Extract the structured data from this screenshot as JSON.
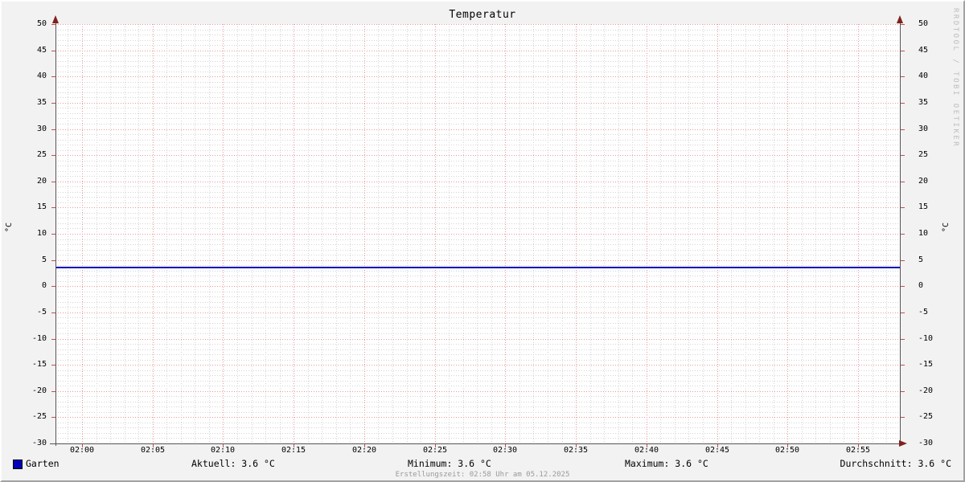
{
  "title": "Temperatur",
  "y_axis_unit": "°C",
  "watermark": "RRDTOOL / TOBI OETIKER",
  "legend": {
    "series_label": "Garten",
    "stats": [
      "Aktuell: 3.6 °C",
      "Minimum: 3.6 °C",
      "Maximum: 3.6 °C",
      "Durchschnitt: 3.6 °C"
    ]
  },
  "footer": "Erstellungszeit: 02:58 Uhr am 05.12.2025",
  "colors": {
    "background": "#f2f2f2",
    "canvas": "#ffffff",
    "major_grid": "#e89a9a",
    "minor_grid": "#d4d4d4",
    "axis": "#555555",
    "arrow": "#80201e",
    "series": "#0000b8"
  },
  "chart_data": {
    "type": "line",
    "title": "Temperatur",
    "xlabel": "",
    "ylabel": "°C",
    "ylim": [
      -30,
      50
    ],
    "y_major_step": 5,
    "y_minor_step": 1,
    "grid": true,
    "x_tick_labels": [
      "02:00",
      "02:05",
      "02:10",
      "02:15",
      "02:20",
      "02:25",
      "02:30",
      "02:35",
      "02:40",
      "02:45",
      "02:50",
      "02:55"
    ],
    "x_major_step_minutes": 5,
    "x_minor_step_minutes": 1,
    "series": [
      {
        "name": "Garten",
        "color": "#0000b8",
        "shape": "constant-horizontal-line",
        "value": 3.6
      }
    ],
    "stats": {
      "aktuell": 3.6,
      "minimum": 3.6,
      "maximum": 3.6,
      "durchschnitt": 3.6,
      "unit": "°C"
    }
  }
}
